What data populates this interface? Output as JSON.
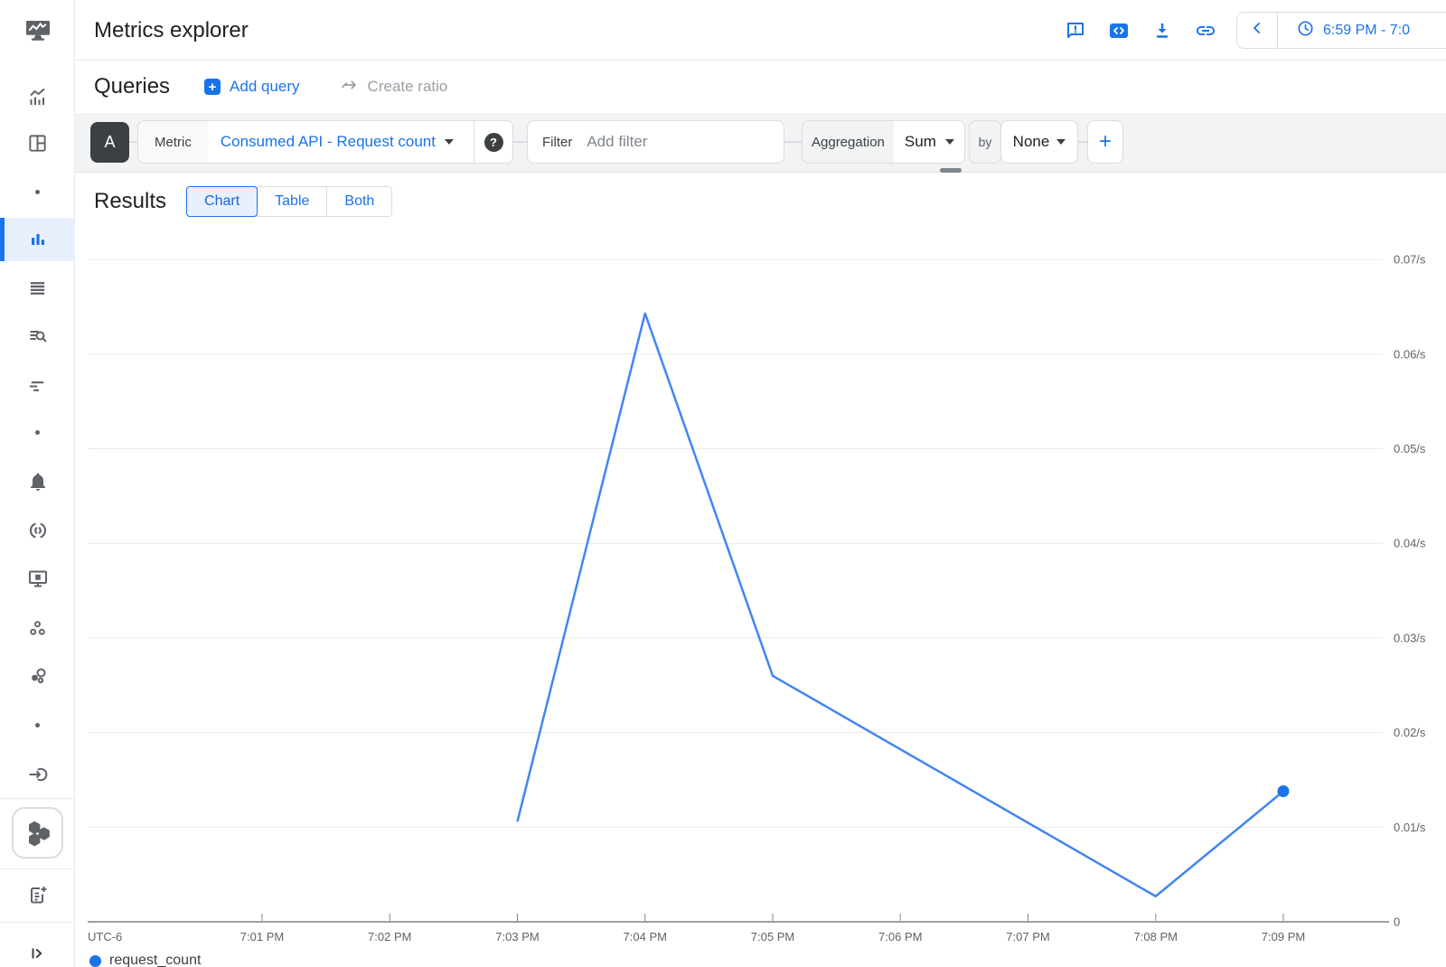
{
  "rail": {
    "items": [
      "monitoring-logo-icon",
      "chart-trend-icon",
      "dashboard-grid-icon",
      "nav-dot-icon",
      "bar-chart-icon",
      "stacked-lines-icon",
      "list-search-icon",
      "staggered-lines-icon",
      "nav-dot-icon",
      "bell-icon",
      "uptime-check-icon",
      "monitor-widget-icon",
      "groups-icon",
      "services-icon",
      "nav-dot-icon",
      "integration-arrow-icon",
      "hexagons-gke-icon",
      "doc-add-icon",
      "expand-rail-icon"
    ],
    "selected_item": "bar-chart-icon"
  },
  "header": {
    "title": "Metrics explorer",
    "action_icons": [
      "feedback-icon",
      "code-sample-icon",
      "download-icon",
      "copy-link-icon"
    ],
    "time_range": "6:59 PM - 7:0"
  },
  "queries": {
    "title": "Queries",
    "add_query_label": "Add query",
    "create_ratio_label": "Create ratio"
  },
  "builder": {
    "query_letter": "A",
    "metric_label": "Metric",
    "metric_value": "Consumed API - Request count",
    "filter_label": "Filter",
    "filter_placeholder": "Add filter",
    "aggregation_label": "Aggregation",
    "aggregation_value": "Sum",
    "by_label": "by",
    "group_by_value": "None",
    "add_button_label": "+"
  },
  "results": {
    "title": "Results",
    "tabs": [
      "Chart",
      "Table",
      "Both"
    ],
    "active_tab": "Chart"
  },
  "chart_data": {
    "type": "line",
    "title": "",
    "timezone_label": "UTC-6",
    "unit": "/s",
    "grid": true,
    "legend_position": "bottom-left",
    "ylim": [
      0,
      0.075
    ],
    "y_ticks": [
      {
        "label": "0.07/s",
        "value": 0.07
      },
      {
        "label": "0.06/s",
        "value": 0.06
      },
      {
        "label": "0.05/s",
        "value": 0.05
      },
      {
        "label": "0.04/s",
        "value": 0.04
      },
      {
        "label": "0.03/s",
        "value": 0.03
      },
      {
        "label": "0.02/s",
        "value": 0.02
      },
      {
        "label": "0.01/s",
        "value": 0.01
      },
      {
        "label": "0",
        "value": 0
      }
    ],
    "x_ticks": [
      {
        "label": "7:01 PM",
        "minute": 1
      },
      {
        "label": "7:02 PM",
        "minute": 2
      },
      {
        "label": "7:03 PM",
        "minute": 3
      },
      {
        "label": "7:04 PM",
        "minute": 4
      },
      {
        "label": "7:05 PM",
        "minute": 5
      },
      {
        "label": "7:06 PM",
        "minute": 6
      },
      {
        "label": "7:07 PM",
        "minute": 7
      },
      {
        "label": "7:08 PM",
        "minute": 8
      },
      {
        "label": "7:09 PM",
        "minute": 9
      }
    ],
    "series": [
      {
        "name": "request_count",
        "color": "#4285f4",
        "end_dot": true,
        "points": [
          {
            "time": "7:03 PM",
            "minute": 3,
            "value": 0.0106
          },
          {
            "time": "7:04 PM",
            "minute": 4,
            "value": 0.0643
          },
          {
            "time": "7:05 PM",
            "minute": 5,
            "value": 0.026
          },
          {
            "time": "7:08 PM",
            "minute": 8,
            "value": 0.0027
          },
          {
            "time": "7:09 PM",
            "minute": 9,
            "value": 0.0138
          }
        ]
      }
    ]
  },
  "colors": {
    "accent": "#1a73e8",
    "line": "#4285f4",
    "selected_bg": "#e8f0fe",
    "text_primary": "#202124",
    "text_secondary": "#5f6368",
    "disabled": "#9aa0a6",
    "border": "#dadce0",
    "gridline": "#e8eaed",
    "strip_bg": "#f1f3f4"
  }
}
